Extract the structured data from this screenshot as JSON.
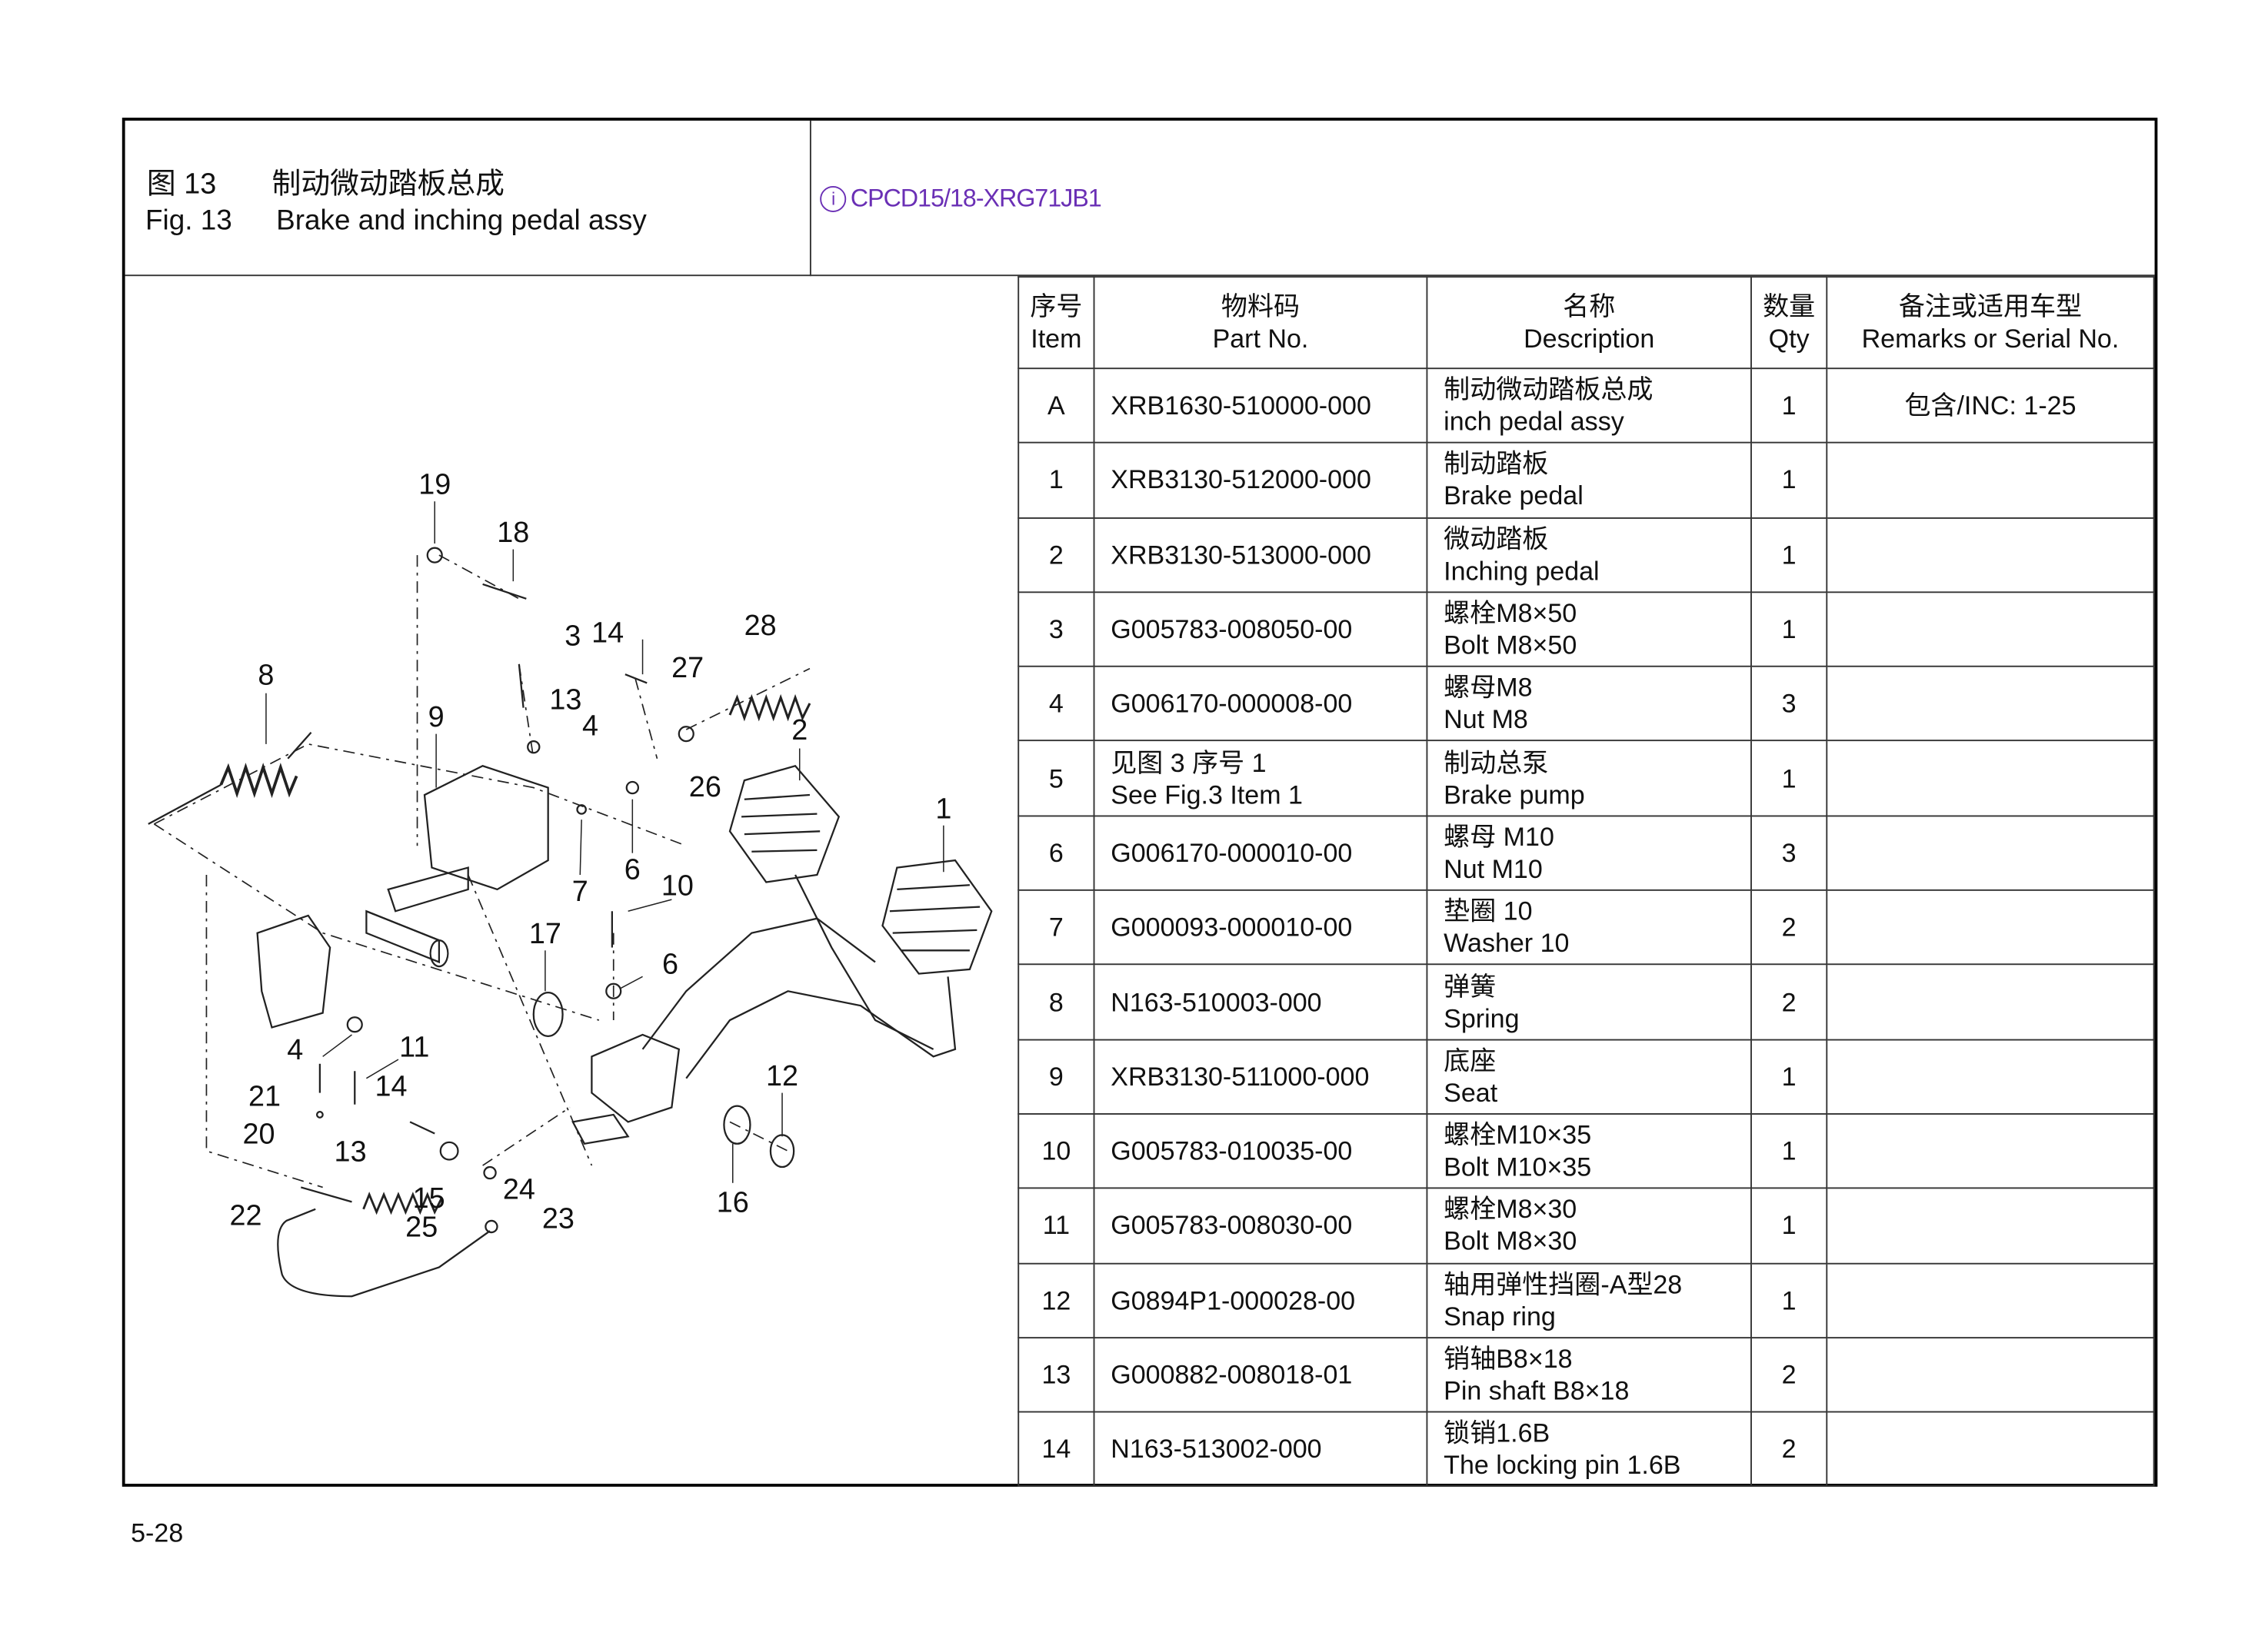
{
  "header": {
    "figure_cn_label": "图 13",
    "title_cn": "制动微动踏板总成",
    "figure_en_label": "Fig. 13",
    "title_en": "Brake and inching pedal assy",
    "model_icon": "info-circle-icon",
    "model_icon_glyph": "i",
    "model": "CPCD15/18-XRG71JB1",
    "model_color": "#6a2fb5"
  },
  "table": {
    "columns": [
      {
        "cn": "序号",
        "en": "Item"
      },
      {
        "cn": "物料码",
        "en": "Part No."
      },
      {
        "cn": "名称",
        "en": "Description"
      },
      {
        "cn": "数量",
        "en": "Qty"
      },
      {
        "cn": "备注或适用车型",
        "en": "Remarks or Serial No."
      }
    ],
    "rows": [
      {
        "item": "A",
        "part": "XRB1630-510000-000",
        "desc_cn": "制动微动踏板总成",
        "desc_en": "inch pedal assy",
        "qty": "1",
        "remarks": "包含/INC: 1-25"
      },
      {
        "item": "1",
        "part": "XRB3130-512000-000",
        "desc_cn": "制动踏板",
        "desc_en": "Brake pedal",
        "qty": "1",
        "remarks": ""
      },
      {
        "item": "2",
        "part": "XRB3130-513000-000",
        "desc_cn": "微动踏板",
        "desc_en": "Inching pedal",
        "qty": "1",
        "remarks": ""
      },
      {
        "item": "3",
        "part": "G005783-008050-00",
        "desc_cn": "螺栓M8×50",
        "desc_en": "Bolt M8×50",
        "qty": "1",
        "remarks": ""
      },
      {
        "item": "4",
        "part": "G006170-000008-00",
        "desc_cn": "螺母M8",
        "desc_en": "Nut M8",
        "qty": "3",
        "remarks": ""
      },
      {
        "item": "5",
        "part": "见图 3  序号 1",
        "part_en": "See Fig.3 Item 1",
        "desc_cn": "制动总泵",
        "desc_en": "Brake pump",
        "qty": "1",
        "remarks": ""
      },
      {
        "item": "6",
        "part": "G006170-000010-00",
        "desc_cn": "螺母 M10",
        "desc_en": "Nut M10",
        "qty": "3",
        "remarks": ""
      },
      {
        "item": "7",
        "part": "G000093-000010-00",
        "desc_cn": "垫圈 10",
        "desc_en": "Washer 10",
        "qty": "2",
        "remarks": ""
      },
      {
        "item": "8",
        "part": "N163-510003-000",
        "desc_cn": "弹簧",
        "desc_en": "Spring",
        "qty": "2",
        "remarks": ""
      },
      {
        "item": "9",
        "part": "XRB3130-511000-000",
        "desc_cn": "底座",
        "desc_en": "Seat",
        "qty": "1",
        "remarks": ""
      },
      {
        "item": "10",
        "part": "G005783-010035-00",
        "desc_cn": "螺栓M10×35",
        "desc_en": "Bolt M10×35",
        "qty": "1",
        "remarks": ""
      },
      {
        "item": "11",
        "part": "G005783-008030-00",
        "desc_cn": "螺栓M8×30",
        "desc_en": "Bolt M8×30",
        "qty": "1",
        "remarks": ""
      },
      {
        "item": "12",
        "part": "G0894P1-000028-00",
        "desc_cn": "轴用弹性挡圈-A型28",
        "desc_en": "Snap ring",
        "qty": "1",
        "remarks": ""
      },
      {
        "item": "13",
        "part": "G000882-008018-01",
        "desc_cn": "销轴B8×18",
        "desc_en": "Pin shaft B8×18",
        "qty": "2",
        "remarks": ""
      },
      {
        "item": "14",
        "part": "N163-513002-000",
        "desc_cn": "锁销1.6B",
        "desc_en": "The locking pin 1.6B",
        "qty": "2",
        "remarks": ""
      }
    ]
  },
  "diagram": {
    "callouts": [
      "19",
      "18",
      "3",
      "14",
      "28",
      "8",
      "27",
      "13",
      "4",
      "9",
      "2",
      "26",
      "1",
      "6",
      "7",
      "10",
      "17",
      "6",
      "4",
      "11",
      "21",
      "14",
      "12",
      "20",
      "13",
      "16",
      "24",
      "15",
      "22",
      "25",
      "23"
    ]
  },
  "footer": {
    "page_number": "5-28"
  }
}
